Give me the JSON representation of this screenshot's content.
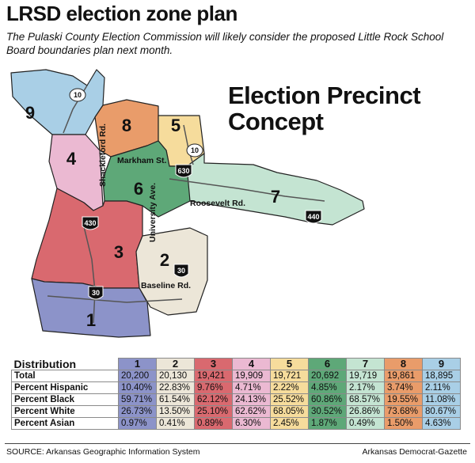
{
  "header": {
    "title": "LRSD election zone plan",
    "subtitle": "The Pulaski County Election Commission will likely consider the proposed Little Rock School Board boundaries plan next month."
  },
  "map": {
    "concept_line1": "Election Precinct",
    "concept_line2": "Concept",
    "zones": [
      {
        "number": "1",
        "color": "#8c93c9"
      },
      {
        "number": "2",
        "color": "#ece6d8"
      },
      {
        "number": "3",
        "color": "#d9696f"
      },
      {
        "number": "4",
        "color": "#ebb9d2"
      },
      {
        "number": "5",
        "color": "#f6dc9c"
      },
      {
        "number": "6",
        "color": "#5ea878"
      },
      {
        "number": "7",
        "color": "#c4e4d2"
      },
      {
        "number": "8",
        "color": "#e99c6a"
      },
      {
        "number": "9",
        "color": "#a9cfe6"
      }
    ],
    "streets": {
      "shackleford": "Shackleford Rd.",
      "markham": "Markham St.",
      "university": "University Ave.",
      "roosevelt": "Roosevelt Rd.",
      "baseline": "Baseline Rd."
    },
    "highways": {
      "hwy10": "10",
      "i630": "630",
      "i430": "430",
      "i440": "440",
      "i30": "30"
    }
  },
  "table": {
    "header_label": "Distribution",
    "columns": [
      "1",
      "2",
      "3",
      "4",
      "5",
      "6",
      "7",
      "8",
      "9"
    ],
    "rows": [
      {
        "label": "Total",
        "values": [
          "20,200",
          "20,130",
          "19,421",
          "19,909",
          "19,721",
          "20,692",
          "19,719",
          "19,861",
          "18,895"
        ]
      },
      {
        "label": "Percent Hispanic",
        "values": [
          "10.40%",
          "22.83%",
          "9.76%",
          "4.71%",
          "2.22%",
          "4.85%",
          "2.17%",
          "3.74%",
          "2.11%"
        ]
      },
      {
        "label": "Percent Black",
        "values": [
          "59.71%",
          "61.54%",
          "62.12%",
          "24.13%",
          "25.52%",
          "60.86%",
          "68.57%",
          "19.55%",
          "11.08%"
        ]
      },
      {
        "label": "Percent White",
        "values": [
          "26.73%",
          "13.50%",
          "25.10%",
          "62.62%",
          "68.05%",
          "30.52%",
          "26.86%",
          "73.68%",
          "80.67%"
        ]
      },
      {
        "label": "Percent Asian",
        "values": [
          "0.97%",
          "0.41%",
          "0.89%",
          "6.30%",
          "2.45%",
          "1.87%",
          "0.49%",
          "1.50%",
          "4.63%"
        ]
      }
    ]
  },
  "footer": {
    "source": "SOURCE: Arkansas Geographic Information System",
    "credit": "Arkansas Democrat-Gazette"
  }
}
